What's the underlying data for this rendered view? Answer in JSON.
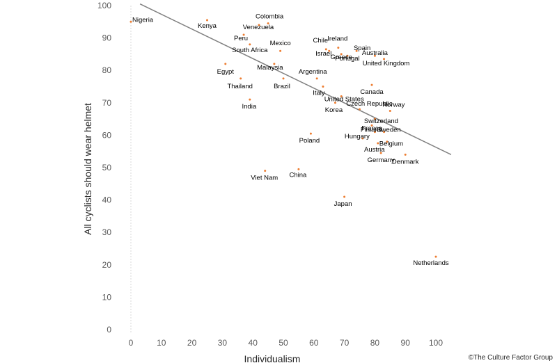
{
  "chart_data": {
    "type": "scatter",
    "title": "",
    "xlabel": "Individualism",
    "ylabel": "All cyclists should wear helmet",
    "xlim": [
      0,
      100
    ],
    "ylim": [
      0,
      100
    ],
    "x_ticks": [
      "0",
      "10",
      "20",
      "30",
      "40",
      "50",
      "60",
      "70",
      "80",
      "90",
      "100"
    ],
    "y_ticks": [
      "0",
      "10",
      "20",
      "30",
      "40",
      "50",
      "60",
      "70",
      "80",
      "90",
      "100"
    ],
    "grid": false,
    "legend": "none",
    "point_color": "#ED7D31",
    "trendline": {
      "type": "linear",
      "x": [
        3,
        105
      ],
      "y": [
        100.5,
        54
      ],
      "color": "#808080"
    },
    "points": [
      {
        "name": "Nigeria",
        "x": 0,
        "y": 95
      },
      {
        "name": "Kenya",
        "x": 25,
        "y": 95.5
      },
      {
        "name": "Colombia",
        "x": 45,
        "y": 94.5
      },
      {
        "name": "Venezuela",
        "x": 42,
        "y": 94
      },
      {
        "name": "Peru",
        "x": 37,
        "y": 91
      },
      {
        "name": "South Africa",
        "x": 39,
        "y": 88
      },
      {
        "name": "Mexico",
        "x": 49,
        "y": 86
      },
      {
        "name": "Egypt",
        "x": 31,
        "y": 82
      },
      {
        "name": "Malaysia",
        "x": 47,
        "y": 82
      },
      {
        "name": "Thailand",
        "x": 36,
        "y": 77.5
      },
      {
        "name": "Brazil",
        "x": 50,
        "y": 77.5
      },
      {
        "name": "India",
        "x": 39,
        "y": 71
      },
      {
        "name": "Chile",
        "x": 64,
        "y": 86.5
      },
      {
        "name": "Ireland",
        "x": 68,
        "y": 87
      },
      {
        "name": "Israel",
        "x": 65,
        "y": 86
      },
      {
        "name": "Greece",
        "x": 69,
        "y": 85
      },
      {
        "name": "Portugal",
        "x": 71,
        "y": 84.5
      },
      {
        "name": "Spain",
        "x": 74,
        "y": 86
      },
      {
        "name": "Australia",
        "x": 80,
        "y": 84.5
      },
      {
        "name": "United Kingdom",
        "x": 83,
        "y": 83.5
      },
      {
        "name": "Argentina",
        "x": 61,
        "y": 77.5
      },
      {
        "name": "Italy",
        "x": 63,
        "y": 75
      },
      {
        "name": "Canada",
        "x": 79,
        "y": 75.5
      },
      {
        "name": "United States",
        "x": 69,
        "y": 72
      },
      {
        "name": "Korea",
        "x": 67,
        "y": 70
      },
      {
        "name": "Czech Republic",
        "x": 75,
        "y": 68
      },
      {
        "name": "Norway",
        "x": 85,
        "y": 67.5
      },
      {
        "name": "Switzerland",
        "x": 80,
        "y": 65
      },
      {
        "name": "France",
        "x": 79,
        "y": 63
      },
      {
        "name": "Finland",
        "x": 80,
        "y": 61
      },
      {
        "name": "Sweden",
        "x": 83,
        "y": 61
      },
      {
        "name": "Hungary",
        "x": 76,
        "y": 59
      },
      {
        "name": "Belgium",
        "x": 84,
        "y": 58
      },
      {
        "name": "Austria",
        "x": 81,
        "y": 57.5
      },
      {
        "name": "Poland",
        "x": 59,
        "y": 60.5
      },
      {
        "name": "Germany",
        "x": 82,
        "y": 54.5
      },
      {
        "name": "Denmark",
        "x": 90,
        "y": 54
      },
      {
        "name": "Viet Nam",
        "x": 44,
        "y": 49
      },
      {
        "name": "China",
        "x": 55,
        "y": 49.5
      },
      {
        "name": "Japan",
        "x": 70,
        "y": 41
      },
      {
        "name": "Netherlands",
        "x": 100,
        "y": 22.5
      }
    ]
  },
  "footer": {
    "copyright": "©The Culture Factor Group"
  }
}
